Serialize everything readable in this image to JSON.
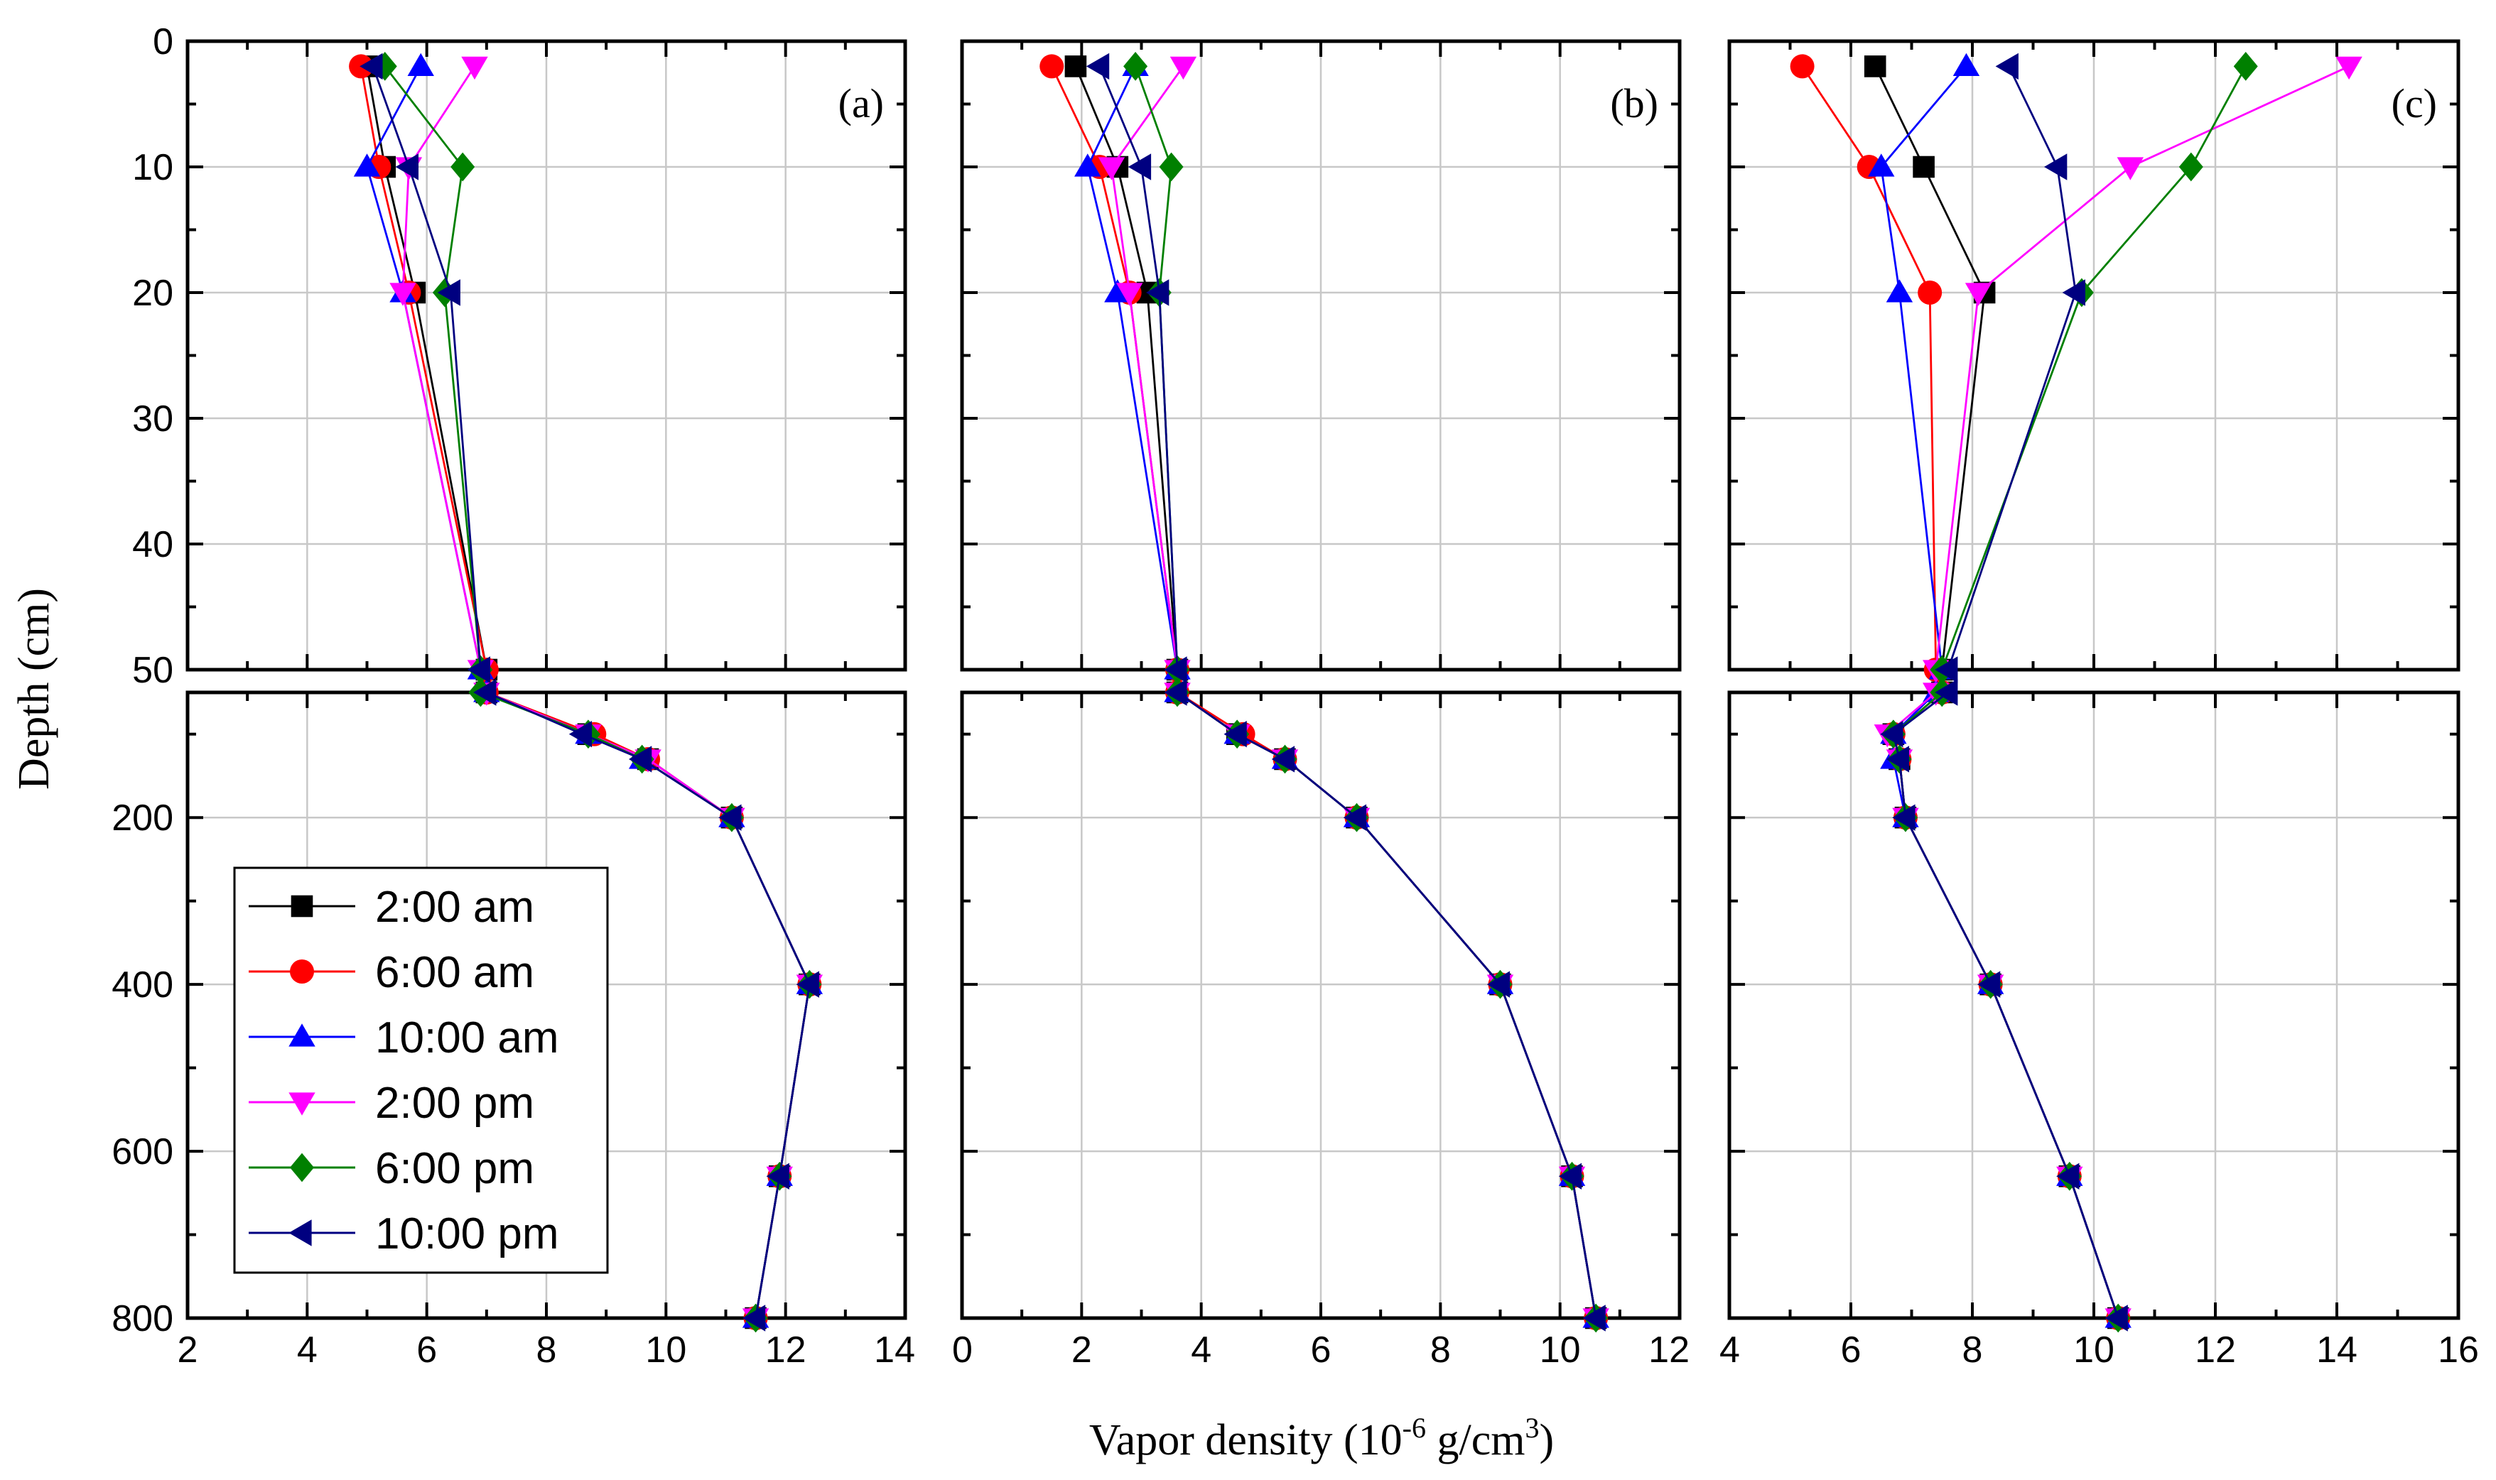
{
  "chart_data": {
    "type": "line",
    "xlabel": "Vapor density (10",
    "xlabel_sup": "-6",
    "xlabel_unit": " g/cm",
    "xlabel_unit_sup": "3",
    "xlabel_close": ")",
    "ylabel": "Depth (cm)",
    "series_info": [
      {
        "name": "2:00 am",
        "color": "#000000",
        "marker": "square"
      },
      {
        "name": "6:00 am",
        "color": "#ff0000",
        "marker": "circle"
      },
      {
        "name": "10:00 am",
        "color": "#0000ff",
        "marker": "triangle-up"
      },
      {
        "name": "2:00 pm",
        "color": "#ff00ff",
        "marker": "triangle-down"
      },
      {
        "name": "6:00 pm",
        "color": "#008000",
        "marker": "diamond"
      },
      {
        "name": "10:00 pm",
        "color": "#000080",
        "marker": "triangle-left"
      }
    ],
    "y_top": {
      "ylim": [
        0,
        50
      ],
      "ticks": [
        0,
        10,
        20,
        30,
        40,
        50
      ],
      "depths": [
        2,
        10,
        20,
        50
      ]
    },
    "y_bottom": {
      "ylim": [
        50,
        800
      ],
      "ticks": [
        200,
        400,
        600,
        800
      ],
      "depths": [
        50,
        100,
        130,
        200,
        400,
        630,
        800
      ]
    },
    "panels": [
      {
        "label": "(a)",
        "xlim": [
          2,
          14
        ],
        "xticks": [
          2,
          4,
          6,
          8,
          10,
          12,
          14
        ],
        "top_values": [
          [
            5.0,
            5.3,
            5.8,
            7.0
          ],
          [
            4.9,
            5.2,
            5.7,
            7.0
          ],
          [
            5.9,
            5.0,
            5.6,
            6.9
          ],
          [
            6.8,
            5.7,
            5.6,
            6.9
          ],
          [
            5.3,
            6.6,
            6.3,
            6.9
          ],
          [
            5.1,
            5.7,
            6.4,
            6.9
          ]
        ],
        "bottom_values": [
          [
            7.0,
            8.7,
            9.7,
            11.1,
            12.4,
            11.9,
            11.5
          ],
          [
            7.0,
            8.8,
            9.7,
            11.1,
            12.4,
            11.9,
            11.5
          ],
          [
            7.0,
            8.7,
            9.6,
            11.1,
            12.4,
            11.9,
            11.5
          ],
          [
            7.0,
            8.7,
            9.7,
            11.1,
            12.4,
            11.9,
            11.5
          ],
          [
            6.9,
            8.7,
            9.6,
            11.1,
            12.4,
            11.9,
            11.5
          ],
          [
            7.0,
            8.6,
            9.6,
            11.1,
            12.4,
            11.9,
            11.5
          ]
        ]
      },
      {
        "label": "(b)",
        "xlim": [
          0,
          12
        ],
        "xticks": [
          0,
          2,
          4,
          6,
          8,
          10,
          12
        ],
        "top_values": [
          [
            1.9,
            2.6,
            3.1,
            3.6
          ],
          [
            1.5,
            2.3,
            2.8,
            3.6
          ],
          [
            2.9,
            2.1,
            2.6,
            3.6
          ],
          [
            3.7,
            2.5,
            2.8,
            3.6
          ],
          [
            2.9,
            3.5,
            3.3,
            3.6
          ],
          [
            2.3,
            3.0,
            3.3,
            3.6
          ]
        ],
        "bottom_values": [
          [
            3.6,
            4.6,
            5.4,
            6.6,
            9.0,
            10.2,
            10.6
          ],
          [
            3.6,
            4.7,
            5.4,
            6.6,
            9.0,
            10.2,
            10.6
          ],
          [
            3.6,
            4.6,
            5.4,
            6.6,
            9.0,
            10.2,
            10.6
          ],
          [
            3.6,
            4.6,
            5.4,
            6.6,
            9.0,
            10.2,
            10.6
          ],
          [
            3.6,
            4.6,
            5.4,
            6.6,
            9.0,
            10.2,
            10.6
          ],
          [
            3.6,
            4.6,
            5.4,
            6.6,
            9.0,
            10.2,
            10.6
          ]
        ]
      },
      {
        "label": "(c)",
        "xlim": [
          4,
          16
        ],
        "xticks": [
          4,
          6,
          8,
          10,
          12,
          14,
          16
        ],
        "top_values": [
          [
            6.4,
            7.2,
            8.2,
            7.5
          ],
          [
            5.2,
            6.3,
            7.3,
            7.4
          ],
          [
            7.9,
            6.5,
            6.8,
            7.5
          ],
          [
            14.2,
            10.6,
            8.1,
            7.4
          ],
          [
            12.5,
            11.6,
            9.8,
            7.5
          ],
          [
            8.6,
            9.4,
            9.7,
            7.6
          ]
        ],
        "bottom_values": [
          [
            7.5,
            6.7,
            6.8,
            6.9,
            8.3,
            9.6,
            10.4
          ],
          [
            7.5,
            6.7,
            6.8,
            6.9,
            8.3,
            9.6,
            10.4
          ],
          [
            7.4,
            6.7,
            6.7,
            6.9,
            8.3,
            9.6,
            10.4
          ],
          [
            7.4,
            6.6,
            6.8,
            6.9,
            8.3,
            9.6,
            10.4
          ],
          [
            7.5,
            6.7,
            6.8,
            6.9,
            8.3,
            9.6,
            10.4
          ],
          [
            7.6,
            6.7,
            6.8,
            6.9,
            8.3,
            9.6,
            10.4
          ]
        ]
      }
    ]
  }
}
